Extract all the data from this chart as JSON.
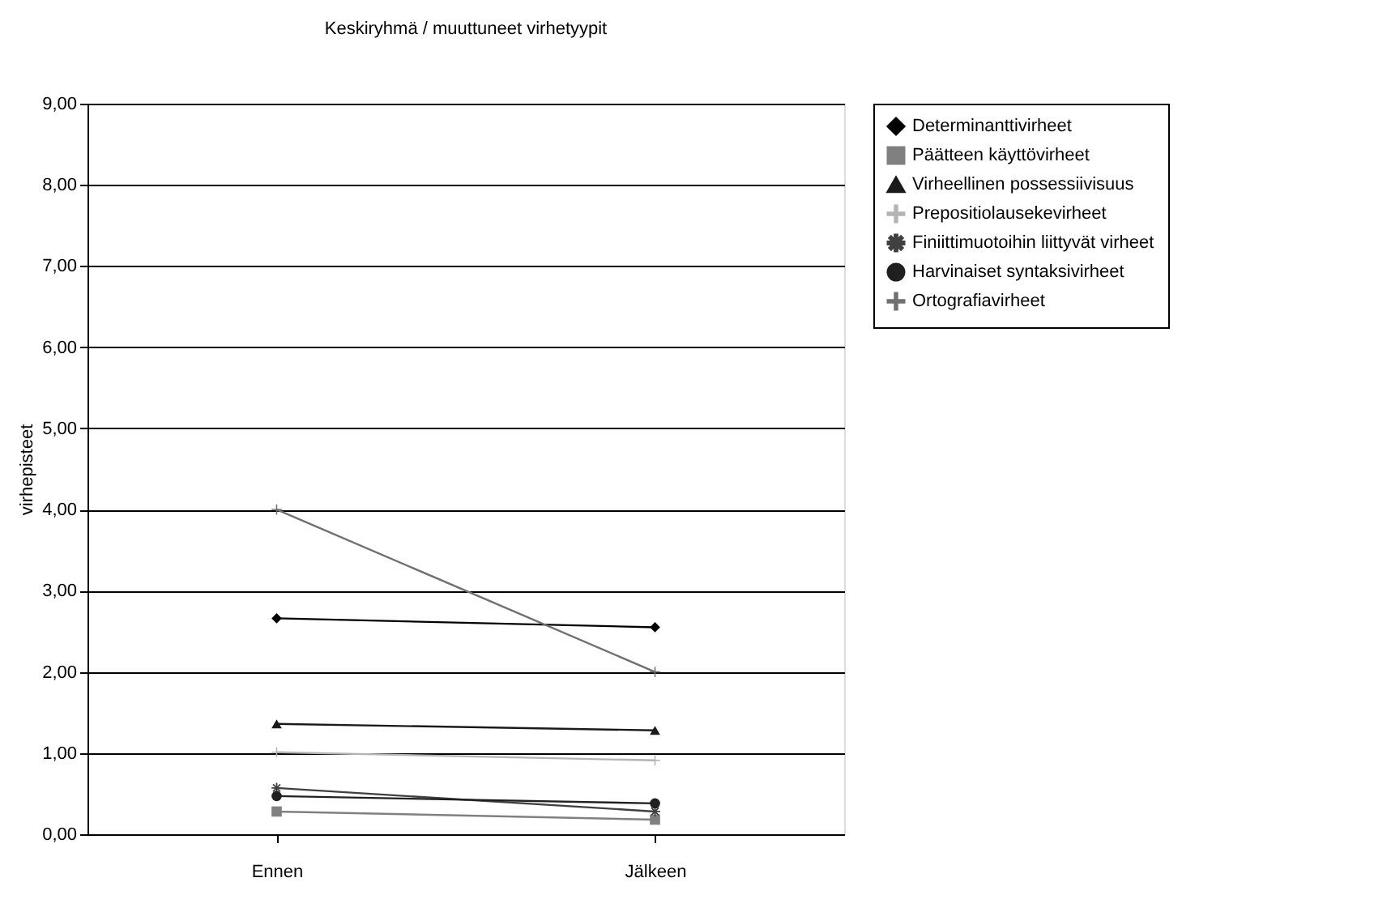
{
  "chart_data": {
    "type": "line",
    "title": "Keskiryhmä / muuttuneet virhetyypit",
    "ylabel": "virhepisteet",
    "categories": [
      "Ennen",
      "Jälkeen"
    ],
    "series": [
      {
        "name": "Determinanttivirheet",
        "color": "#000000",
        "marker": "diamond",
        "values": [
          2.66,
          2.55
        ]
      },
      {
        "name": "Päätteen käyttövirheet",
        "color": "#808080",
        "marker": "square",
        "values": [
          0.28,
          0.18
        ]
      },
      {
        "name": "Virheellinen possessiivisuus",
        "color": "#1a1a1a",
        "marker": "triangle",
        "values": [
          1.36,
          1.28
        ]
      },
      {
        "name": "Prepositiolausekevirheet",
        "color": "#b4b4b4",
        "marker": "cross",
        "values": [
          1.01,
          0.91
        ]
      },
      {
        "name": "Finiittimuotoihin liittyvät virheet",
        "color": "#404040",
        "marker": "star",
        "values": [
          0.57,
          0.28
        ]
      },
      {
        "name": "Harvinaiset syntaksivirheet",
        "color": "#202020",
        "marker": "circle",
        "values": [
          0.47,
          0.38
        ]
      },
      {
        "name": "Ortografiavirheet",
        "color": "#707070",
        "marker": "cross",
        "values": [
          4.0,
          2.0
        ]
      }
    ],
    "ylim": [
      0,
      9
    ],
    "yticks": [
      {
        "value": 0,
        "label": "0,00"
      },
      {
        "value": 1,
        "label": "1,00"
      },
      {
        "value": 2,
        "label": "2,00"
      },
      {
        "value": 3,
        "label": "3,00"
      },
      {
        "value": 4,
        "label": "4,00"
      },
      {
        "value": 5,
        "label": "5,00"
      },
      {
        "value": 6,
        "label": "6,00"
      },
      {
        "value": 7,
        "label": "7,00"
      },
      {
        "value": 8,
        "label": "8,00"
      },
      {
        "value": 9,
        "label": "9,00"
      }
    ],
    "grid": "y",
    "legend": "right",
    "line_style": "solid"
  }
}
